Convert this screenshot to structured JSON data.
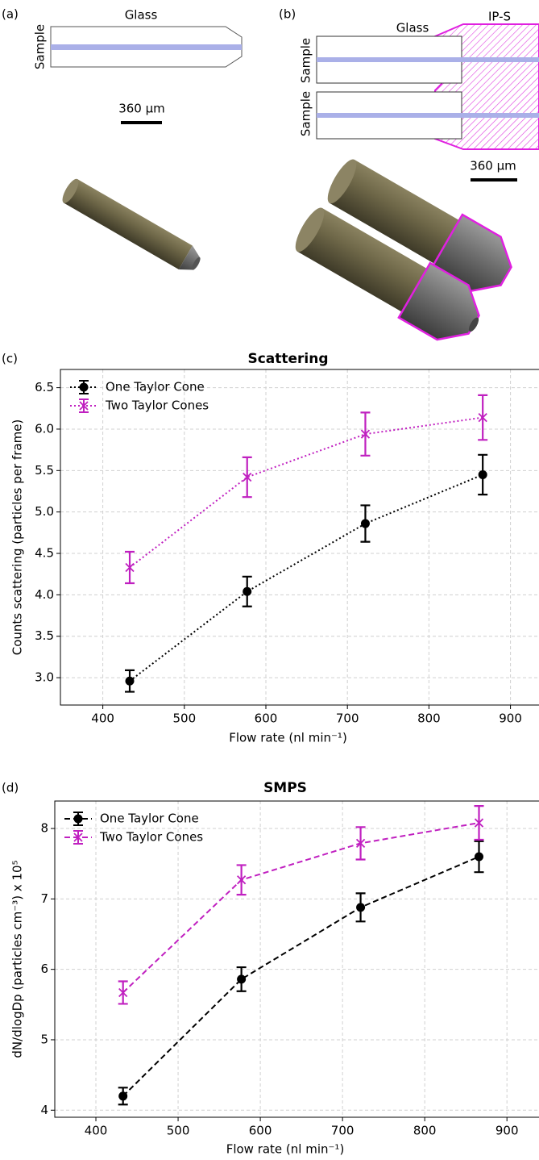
{
  "diagrams": {
    "a": {
      "label": "(a)",
      "material": "Glass",
      "sample": "Sample",
      "scale": "360 µm"
    },
    "b": {
      "label": "(b)",
      "material": "Glass",
      "coating": "IP-S",
      "sample_top": "Sample",
      "sample_bottom": "Sample",
      "scale": "360 µm"
    }
  },
  "chart_data": [
    {
      "type": "line",
      "panel_label": "(c)",
      "title": "Scattering",
      "x_label": "Flow rate (nl min⁻¹)",
      "y_label": "Counts scattering (particles per frame)",
      "x": [
        433,
        577,
        722,
        866
      ],
      "series": [
        {
          "name": "One Taylor Cone",
          "color": "#000000",
          "marker": "o",
          "linestyle": "dotted",
          "values": [
            2.96,
            4.04,
            4.86,
            5.45
          ],
          "errors": [
            0.13,
            0.18,
            0.22,
            0.24
          ]
        },
        {
          "name": "Two Taylor Cones",
          "color": "#c020c0",
          "marker": "x",
          "linestyle": "dotted",
          "values": [
            4.33,
            5.42,
            5.94,
            6.14
          ],
          "errors": [
            0.19,
            0.24,
            0.26,
            0.27
          ]
        }
      ],
      "xlim": [
        348,
        935
      ],
      "ylim": [
        2.67,
        6.72
      ],
      "xticks": [
        400,
        500,
        600,
        700,
        800,
        900
      ],
      "yticks": [
        {
          "value": 3,
          "label": "3.0"
        },
        3.5,
        {
          "value": 4,
          "label": "4.0"
        },
        4.5,
        {
          "value": 5,
          "label": "5.0"
        },
        5.5,
        {
          "value": 6,
          "label": "6.0"
        },
        6.5
      ],
      "grid": true,
      "legend": "upper left"
    },
    {
      "type": "line",
      "panel_label": "(d)",
      "title": "SMPS",
      "x_label": "Flow rate (nl min⁻¹)",
      "y_label": "dN/dlogDp (particles cm⁻³) x 10⁵",
      "x": [
        433,
        577,
        722,
        866
      ],
      "series": [
        {
          "name": "One Taylor Cone",
          "color": "#000000",
          "marker": "o",
          "linestyle": "dashed",
          "values": [
            4.2,
            5.86,
            6.88,
            7.6
          ],
          "errors": [
            0.12,
            0.17,
            0.2,
            0.22
          ]
        },
        {
          "name": "Two Taylor Cones",
          "color": "#c020c0",
          "marker": "x",
          "linestyle": "dashed",
          "values": [
            5.67,
            7.27,
            7.79,
            8.08
          ],
          "errors": [
            0.16,
            0.21,
            0.23,
            0.24
          ]
        }
      ],
      "xlim": [
        350,
        939
      ],
      "ylim": [
        3.9,
        8.39
      ],
      "xticks": [
        400,
        500,
        600,
        700,
        800,
        900
      ],
      "yticks": [
        4,
        5,
        6,
        7,
        8
      ],
      "grid": true,
      "legend": "upper left"
    }
  ]
}
